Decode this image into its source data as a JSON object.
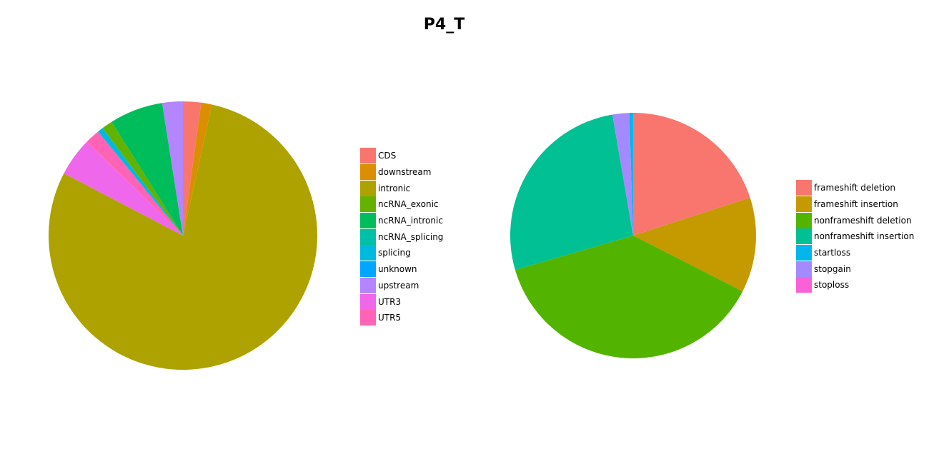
{
  "title": "P4_T",
  "chart_data": [
    {
      "type": "pie",
      "title": "",
      "start_angle_deg": 0,
      "direction": "clockwise",
      "slices": [
        {
          "label": "CDS",
          "value": 2.2,
          "color": "#F8766D"
        },
        {
          "label": "downstream",
          "value": 1.3,
          "color": "#DB8E00"
        },
        {
          "label": "intronic",
          "value": 80.0,
          "color": "#AEA200"
        },
        {
          "label": "ncRNA_exonic",
          "value": 0.0,
          "color": "#64B200"
        },
        {
          "label": "ncRNA_intronic",
          "value": 0.0,
          "color": "#00BD5C"
        },
        {
          "label": "ncRNA_splicing",
          "value": 0.0,
          "color": "#00C1A7"
        },
        {
          "label": "splicing",
          "value": 0.0,
          "color": "#00BADE"
        },
        {
          "label": "unknown",
          "value": 0.0,
          "color": "#00A6FF"
        },
        {
          "label": "upstream",
          "value": 0.0,
          "color": "#B385FF"
        },
        {
          "label": "UTR3",
          "value": 4.7,
          "color": "#EF67EB"
        },
        {
          "label": "UTR5",
          "value": 1.8,
          "color": "#FF63B6"
        },
        {
          "label": "splicing",
          "value": 0.7,
          "color": "#00BADE"
        },
        {
          "label": "ncRNA_exonic",
          "value": 1.3,
          "color": "#64B200"
        },
        {
          "label": "ncRNA_intronic",
          "value": 6.5,
          "color": "#00BD5C"
        },
        {
          "label": "upstream",
          "value": 2.5,
          "color": "#B385FF"
        }
      ],
      "legend": {
        "position": "right",
        "entries": [
          {
            "label": "CDS",
            "color": "#F8766D"
          },
          {
            "label": "downstream",
            "color": "#DB8E00"
          },
          {
            "label": "intronic",
            "color": "#AEA200"
          },
          {
            "label": "ncRNA_exonic",
            "color": "#64B200"
          },
          {
            "label": "ncRNA_intronic",
            "color": "#00BD5C"
          },
          {
            "label": "ncRNA_splicing",
            "color": "#00C1A7"
          },
          {
            "label": "splicing",
            "color": "#00BADE"
          },
          {
            "label": "unknown",
            "color": "#00A6FF"
          },
          {
            "label": "upstream",
            "color": "#B385FF"
          },
          {
            "label": "UTR3",
            "color": "#EF67EB"
          },
          {
            "label": "UTR5",
            "color": "#FF63B6"
          }
        ]
      }
    },
    {
      "type": "pie",
      "title": "",
      "start_angle_deg": 0,
      "direction": "clockwise",
      "slices": [
        {
          "label": "frameshift deletion",
          "value": 20.0,
          "color": "#F8766D"
        },
        {
          "label": "frameshift insertion",
          "value": 12.5,
          "color": "#C49A00"
        },
        {
          "label": "nonframeshift deletion",
          "value": 38.0,
          "color": "#53B400"
        },
        {
          "label": "nonframeshift insertion",
          "value": 26.8,
          "color": "#00C094"
        },
        {
          "label": "stopgain",
          "value": 2.2,
          "color": "#A58AFF"
        },
        {
          "label": "startloss",
          "value": 0.5,
          "color": "#00B6EB"
        }
      ],
      "legend": {
        "position": "right",
        "entries": [
          {
            "label": "frameshift deletion",
            "color": "#F8766D"
          },
          {
            "label": "frameshift insertion",
            "color": "#C49A00"
          },
          {
            "label": "nonframeshift deletion",
            "color": "#53B400"
          },
          {
            "label": "nonframeshift insertion",
            "color": "#00C094"
          },
          {
            "label": "startloss",
            "color": "#00B6EB"
          },
          {
            "label": "stopgain",
            "color": "#A58AFF"
          },
          {
            "label": "stoploss",
            "color": "#FB61D7"
          }
        ]
      }
    }
  ]
}
